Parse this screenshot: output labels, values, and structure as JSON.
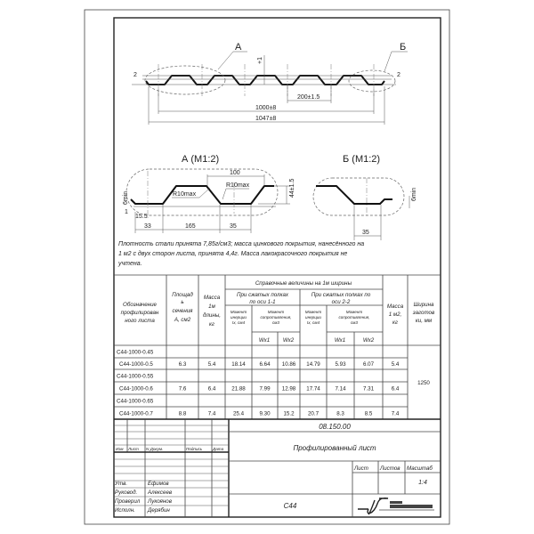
{
  "drawing": {
    "callout_a": "А",
    "callout_b": "Б",
    "dim_pitch": "200±1.5",
    "dim_width_useful": "1000±8",
    "dim_width_total": "1047±8",
    "dim_small_left": "2",
    "dim_small_right": "2",
    "dim_top_tol": "+1",
    "detail_a": {
      "title": "А (М1:2)",
      "dims": [
        "33",
        "165",
        "35"
      ],
      "dim_top": "100",
      "dim_height": "44±1.5",
      "dim_min": "6min",
      "dim_one": "1",
      "dim_15": "15.5",
      "radius_1": "R10max",
      "radius_2": "R10max"
    },
    "detail_b": {
      "title": "Б (М1:2)",
      "dim_bottom": "35",
      "dim_min": "6min"
    }
  },
  "note": [
    "Плотность стали принята 7,85г/см3; масса цинкового покрытия, нанесённого на",
    "1 м2 с двух сторон листа, принята 4,4г. Масса лакокрасочного покрытия не",
    "учтена."
  ],
  "table": {
    "headers": {
      "designation": [
        "Обозначение",
        "профилирован",
        "ного листа"
      ],
      "area": [
        "Площад",
        "ь",
        "сечения",
        "А, см2"
      ],
      "mass_1m": [
        "Масса",
        "1м",
        "длины,",
        "кг"
      ],
      "reference": "Справочные величины на 1м ширины",
      "axis_11": [
        "При сжатых полках",
        "по оси 1-1"
      ],
      "axis_22": [
        "При сжатых полках по",
        "оси 2-2"
      ],
      "inertia": [
        "Момент",
        "инерции",
        "Ix, см4"
      ],
      "resistance": [
        "Момент",
        "сопротивления,",
        "см3"
      ],
      "wx1": "Wx1",
      "wx2": "Wx2",
      "mass_m2": [
        "Масса",
        "1 м2,",
        "кг"
      ],
      "blank_width": [
        "Ширина",
        "заготов",
        "ки, мм"
      ]
    },
    "rows": [
      [
        "С44-1000-0.45",
        "",
        "",
        "",
        "",
        "",
        "",
        "",
        "",
        ""
      ],
      [
        "С44-1000-0.5",
        "6.3",
        "5.4",
        "18.14",
        "6.64",
        "10.86",
        "14.79",
        "5.93",
        "6.07",
        "5.4"
      ],
      [
        "С44-1000-0.55",
        "",
        "",
        "",
        "",
        "",
        "",
        "",
        "",
        ""
      ],
      [
        "С44-1000-0.6",
        "7.6",
        "6.4",
        "21.88",
        "7.99",
        "12.98",
        "17.74",
        "7.14",
        "7.31",
        "6.4"
      ],
      [
        "С44-1000-0.65",
        "",
        "",
        "",
        "",
        "",
        "",
        "",
        "",
        ""
      ],
      [
        "С44-1000-0.7",
        "8.8",
        "7.4",
        "25.4",
        "9.30",
        "15.2",
        "20.7",
        "8.3",
        "8.5",
        "7.4"
      ]
    ],
    "blank_width_value": "1250"
  },
  "title_block": {
    "doc_number": "08.150.00",
    "doc_title": "Профилированный лист",
    "product": "С44",
    "col_labels": [
      "Изм",
      "Лист",
      "N Докум.",
      "Подпись",
      "Дата"
    ],
    "sheet_label": "Лист",
    "sheets_label": "Листов",
    "scale_label": "Масштаб",
    "scale_value": "1:4",
    "roles": [
      {
        "role": "Утв.",
        "name": "Ефимов"
      },
      {
        "role": "Руковод.",
        "name": "Алексеев"
      },
      {
        "role": "Проверил",
        "name": "Лукоянов"
      },
      {
        "role": "Исполн.",
        "name": "Дерябин"
      }
    ]
  }
}
